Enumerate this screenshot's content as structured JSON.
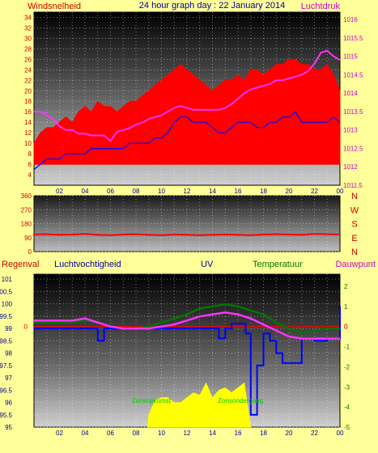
{
  "header": {
    "left_label": "Windsnelheid",
    "title": "24 hour graph day : 22 January 2014",
    "right_label": "Luchtdruk"
  },
  "legend_row": {
    "rain": "Regenval",
    "humidity": "Luchtvochtigheid",
    "uv": "UV",
    "temperature": "Temperatuur",
    "dewpoint": "Dauwpunt"
  },
  "colors": {
    "background": "#ffff99",
    "wind_gust": "#ff0000",
    "wind_avg": "#0000ff",
    "pressure": "#ff33ff",
    "direction": "#ff0000",
    "humidity": "#0000ff",
    "temperature": "#007700",
    "dewpoint": "#ff33ff",
    "uv_fill": "#ffff00",
    "zero_line": "#ff0000",
    "left_axis": "#cc0000",
    "right_axis": "#cc00cc",
    "label_blue": "#000099",
    "label_green": "#007700",
    "cal_label": "#00cc00"
  },
  "chart_data": [
    {
      "type": "line",
      "name": "wind-pressure",
      "x_ticks": [
        "02",
        "04",
        "06",
        "08",
        "10",
        "12",
        "14",
        "16",
        "18",
        "20",
        "22",
        "00"
      ],
      "x_range_hours": [
        0,
        24
      ],
      "ylabel_left": "Windsnelheid",
      "ylabel_right": "Luchtdruk",
      "ylim_left": [
        2,
        35
      ],
      "y_ticks_left": [
        4,
        6,
        8,
        10,
        12,
        14,
        16,
        18,
        20,
        22,
        24,
        26,
        28,
        30,
        32,
        34
      ],
      "ylim_right": [
        1011.5,
        1016.2
      ],
      "y_ticks_right": [
        1011.5,
        1012,
        1012.5,
        1013,
        1013.5,
        1014,
        1014.5,
        1015,
        1015.5,
        1016
      ],
      "series": [
        {
          "type": "area",
          "color": "#ff0000",
          "axis": "left",
          "x": [
            0,
            0.5,
            1,
            1.5,
            2,
            2.5,
            3,
            3.5,
            4,
            4.5,
            5,
            5.5,
            6,
            6.5,
            7,
            7.5,
            8,
            8.5,
            9,
            9.5,
            10,
            10.5,
            11,
            11.5,
            12,
            12.5,
            13,
            13.5,
            14,
            14.5,
            15,
            15.5,
            16,
            16.5,
            17,
            17.5,
            18,
            18.5,
            19,
            19.5,
            20,
            20.5,
            21,
            21.5,
            22,
            22.5,
            23,
            23.5,
            24
          ],
          "y": [
            10,
            12,
            13,
            13,
            14,
            15,
            14,
            16,
            17,
            16,
            18,
            17,
            17,
            16,
            17,
            18,
            18,
            19,
            20,
            21,
            22,
            23,
            24,
            25,
            24,
            23,
            22,
            21,
            20,
            21,
            22,
            22,
            23,
            22,
            24,
            24,
            23,
            24,
            25,
            25,
            26,
            26,
            25,
            25,
            24,
            24,
            25,
            23,
            20
          ]
        },
        {
          "type": "line",
          "color": "#0000ff",
          "axis": "left",
          "x": [
            0,
            0.5,
            1,
            1.5,
            2,
            2.5,
            3,
            3.5,
            4,
            4.5,
            5,
            5.5,
            6,
            6.5,
            7,
            7.5,
            8,
            8.5,
            9,
            9.5,
            10,
            10.5,
            11,
            11.5,
            12,
            12.5,
            13,
            13.5,
            14,
            14.5,
            15,
            15.5,
            16,
            16.5,
            17,
            17.5,
            18,
            18.5,
            19,
            19.5,
            20,
            20.5,
            21,
            21.5,
            22,
            22.5,
            23,
            23.5,
            24
          ],
          "y": [
            5,
            6,
            7,
            7,
            7,
            8,
            8,
            8,
            8,
            9,
            9,
            9,
            9,
            9,
            9,
            10,
            10,
            10,
            10,
            11,
            11,
            12,
            14,
            15,
            15,
            14,
            14,
            14,
            13,
            12,
            12,
            13,
            14,
            14,
            14,
            13,
            13,
            14,
            14,
            15,
            15,
            16,
            14,
            14,
            14,
            14,
            14,
            15,
            14
          ]
        },
        {
          "type": "line",
          "color": "#ff33ff",
          "axis": "right",
          "x": [
            0,
            0.5,
            1,
            1.5,
            2,
            2.5,
            3,
            3.5,
            4,
            4.5,
            5,
            5.5,
            6,
            6.5,
            7,
            7.5,
            8,
            8.5,
            9,
            9.5,
            10,
            10.5,
            11,
            11.5,
            12,
            12.5,
            13,
            13.5,
            14,
            14.5,
            15,
            15.5,
            16,
            16.5,
            17,
            17.5,
            18,
            18.5,
            19,
            19.5,
            20,
            20.5,
            21,
            21.5,
            22,
            22.5,
            23,
            23.5,
            24
          ],
          "y": [
            1013.5,
            1013.5,
            1013.4,
            1013.3,
            1013.1,
            1013,
            1013,
            1012.9,
            1012.9,
            1012.85,
            1012.85,
            1012.85,
            1012.7,
            1012.95,
            1013,
            1013.05,
            1013.15,
            1013.2,
            1013.3,
            1013.35,
            1013.4,
            1013.5,
            1013.6,
            1013.65,
            1013.6,
            1013.55,
            1013.55,
            1013.55,
            1013.55,
            1013.55,
            1013.6,
            1013.7,
            1013.85,
            1014,
            1014.1,
            1014.15,
            1014.2,
            1014.25,
            1014.35,
            1014.35,
            1014.4,
            1014.45,
            1014.5,
            1014.6,
            1014.8,
            1015.1,
            1015.15,
            1015,
            1014.9
          ]
        }
      ]
    },
    {
      "type": "line",
      "name": "wind-direction",
      "x_range_hours": [
        0,
        24
      ],
      "y_ticks_left": [
        0,
        90,
        180,
        270,
        360
      ],
      "ylim": [
        0,
        360
      ],
      "y_ticks_right": [
        "N",
        "W",
        "S",
        "E",
        "N"
      ],
      "series": [
        {
          "color": "#ff0000",
          "x": [
            0,
            1,
            2,
            3,
            4,
            5,
            6,
            7,
            8,
            9,
            10,
            11,
            12,
            13,
            14,
            15,
            16,
            17,
            18,
            19,
            20,
            21,
            22,
            23,
            24
          ],
          "y": [
            110,
            112,
            108,
            110,
            114,
            108,
            106,
            110,
            112,
            108,
            106,
            110,
            108,
            106,
            108,
            110,
            108,
            106,
            110,
            112,
            110,
            108,
            114,
            112,
            110
          ]
        }
      ]
    },
    {
      "type": "line",
      "name": "humidity-temperature-uv",
      "x_range_hours": [
        0,
        24
      ],
      "ylim_left": [
        95,
        101.2
      ],
      "y_ticks_left": [
        95,
        95.5,
        96,
        96.5,
        97,
        97.5,
        98,
        98.5,
        99,
        99.5,
        100,
        100.5,
        101
      ],
      "ylim_right": [
        -5,
        2.6
      ],
      "y_ticks_right": [
        -5,
        -4,
        -3,
        -2,
        -1,
        0,
        1,
        2
      ],
      "zero_label_left": "0",
      "zero_label_right": "0",
      "uv_labels": [
        "Zonsopkomst",
        "Zonsondergang"
      ],
      "series": [
        {
          "type": "area",
          "color": "#ffff00",
          "axis": "left",
          "x": [
            8.9,
            9,
            9.5,
            10,
            10.5,
            11,
            11.5,
            12,
            12.5,
            13,
            13.5,
            14,
            14.5,
            15,
            15.5,
            16,
            16.5,
            17
          ],
          "y": [
            95,
            95.5,
            96.1,
            96.2,
            96.2,
            96.0,
            96.0,
            96.2,
            96.4,
            96.3,
            96.8,
            96.2,
            96.5,
            96.6,
            96.4,
            96.6,
            96.8,
            95
          ]
        },
        {
          "type": "step",
          "color": "#0000ff",
          "axis": "left",
          "x": [
            0,
            1,
            2,
            3,
            4,
            4.8,
            5,
            5.5,
            6,
            7,
            8,
            9,
            10,
            11,
            11.5,
            12,
            13,
            14,
            14.5,
            15,
            15.5,
            16,
            16.6,
            17,
            17.5,
            18,
            18.5,
            19,
            19.5,
            20,
            21,
            22,
            23,
            24
          ],
          "y": [
            99.0,
            99.0,
            99.0,
            99.0,
            99.0,
            99.0,
            98.5,
            99.0,
            99.0,
            99.0,
            99.0,
            99.0,
            99.0,
            99.0,
            99.0,
            99.0,
            99.0,
            99.0,
            98.6,
            99.0,
            99.2,
            99.2,
            98.8,
            95.5,
            97.5,
            98.8,
            98.5,
            98.0,
            97.6,
            97.6,
            98.6,
            98.5,
            98.6,
            99.9
          ]
        },
        {
          "type": "line",
          "color": "#007700",
          "axis": "right",
          "x": [
            0,
            1,
            2,
            3,
            4,
            5,
            6,
            7,
            8,
            9,
            10,
            11,
            12,
            13,
            14,
            15,
            16,
            17,
            18,
            19,
            20,
            21,
            22,
            23,
            24
          ],
          "y": [
            0.2,
            0.2,
            0.2,
            0.2,
            0.3,
            0.2,
            0,
            -0.1,
            -0.1,
            0,
            0.2,
            0.4,
            0.6,
            0.9,
            1.0,
            1.1,
            1.0,
            0.8,
            0.6,
            0.2,
            -0.1,
            -0.3,
            -0.2,
            -0.1,
            -0.1
          ]
        },
        {
          "type": "line",
          "color": "#ff33ff",
          "axis": "right",
          "x": [
            0,
            1,
            2,
            3,
            4,
            5,
            6,
            7,
            8,
            9,
            10,
            11,
            12,
            13,
            14,
            15,
            16,
            17,
            18,
            19,
            20,
            21,
            22,
            23,
            24
          ],
          "y": [
            0.3,
            0.3,
            0.3,
            0.3,
            0.4,
            0.2,
            0,
            -0.1,
            -0.1,
            -0.1,
            0,
            0.1,
            0.3,
            0.5,
            0.6,
            0.7,
            0.6,
            0.4,
            0.1,
            -0.2,
            -0.5,
            -0.6,
            -0.6,
            -0.6,
            -0.6
          ]
        }
      ]
    }
  ]
}
